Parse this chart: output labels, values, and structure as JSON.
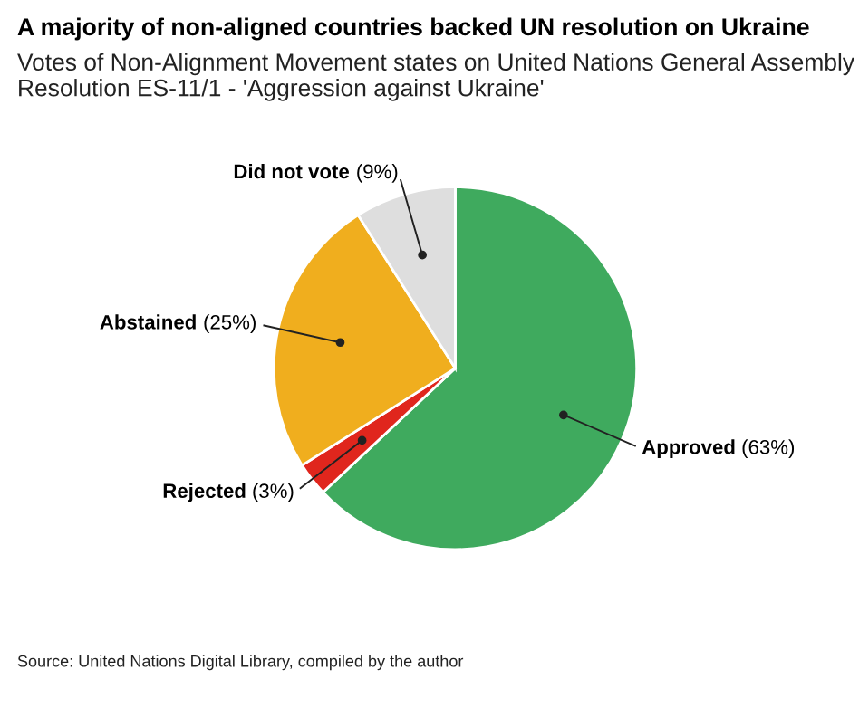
{
  "chart_data": {
    "type": "pie",
    "title": "A majority of non-aligned countries backed UN resolution on Ukraine",
    "subtitle": "Votes of Non-Alignment Movement states on United Nations General Assembly Resolution ES-11/1 - 'Aggression against Ukraine'",
    "categories": [
      "Approved",
      "Rejected",
      "Abstained",
      "Did not vote"
    ],
    "values": [
      63,
      3,
      25,
      9
    ],
    "colors": [
      "#3faa5e",
      "#e0261d",
      "#f0ae1e",
      "#dedede"
    ],
    "value_labels": [
      "(63%)",
      "(3%)",
      "(25%)",
      "(9%)"
    ],
    "annotations": [
      "Source: United Nations Digital Library, compiled by the author"
    ]
  }
}
